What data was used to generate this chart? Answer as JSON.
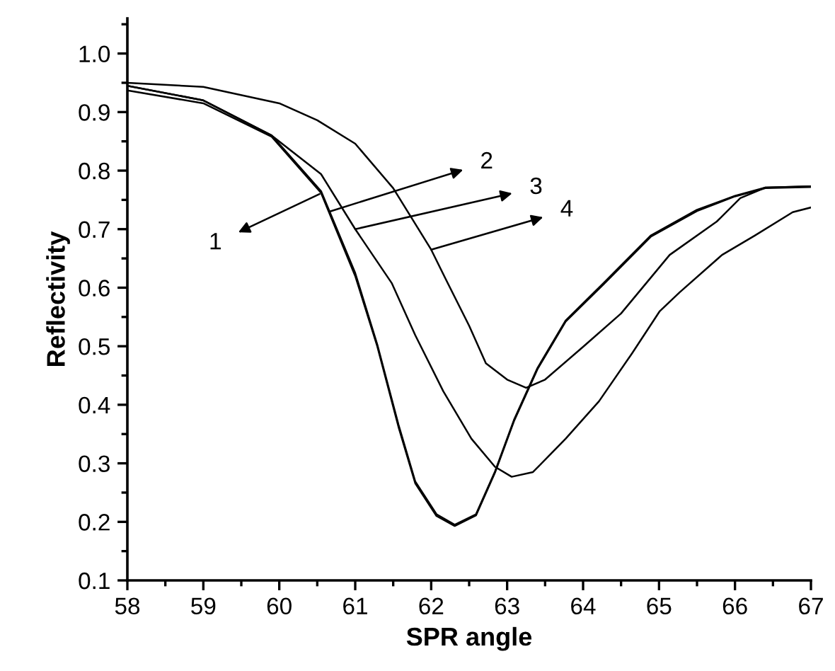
{
  "chart_data": {
    "type": "line",
    "xlabel": "SPR angle",
    "ylabel": "Reflectivity",
    "xlim": [
      58,
      67
    ],
    "ylim": [
      0.1,
      1.06
    ],
    "xticks": [
      58,
      59,
      60,
      61,
      62,
      63,
      64,
      65,
      66,
      67
    ],
    "yticks": [
      {
        "value": 0.1,
        "label": "0.1"
      },
      {
        "value": 0.2,
        "label": "0.2"
      },
      {
        "value": 0.3,
        "label": "0.3"
      },
      {
        "value": 0.4,
        "label": "0.4"
      },
      {
        "value": 0.5,
        "label": "0.5"
      },
      {
        "value": 0.6,
        "label": "0.6"
      },
      {
        "value": 0.7,
        "label": "0.7"
      },
      {
        "value": 0.8,
        "label": "0.8"
      },
      {
        "value": 0.9,
        "label": "0.9"
      },
      {
        "value": 1.0,
        "label": "1.0"
      }
    ],
    "grid": false,
    "legend": false,
    "marker": "none",
    "line_style": "solid",
    "series": [
      {
        "color": "#000000",
        "x": [
          58,
          59,
          59.9,
          60.55,
          61.0,
          61.29,
          61.57,
          61.79,
          62.07,
          62.31,
          62.59,
          62.84,
          63.09,
          63.4,
          63.77,
          64.27,
          64.89,
          65.5,
          66.0,
          66.4,
          67
        ],
        "values": [
          0.937,
          0.915,
          0.858,
          0.762,
          0.62,
          0.5,
          0.362,
          0.266,
          0.21,
          0.193,
          0.211,
          0.284,
          0.372,
          0.461,
          0.542,
          0.606,
          0.687,
          0.731,
          0.756,
          0.77,
          0.772
        ]
      },
      {
        "color": "#000000",
        "x": [
          58,
          59,
          59.9,
          60.55,
          61.0,
          61.29,
          61.57,
          61.79,
          62.07,
          62.31,
          62.59,
          62.84,
          63.09,
          63.4,
          63.77,
          64.27,
          64.89,
          65.5,
          66.0,
          66.4,
          67
        ],
        "values": [
          0.945,
          0.92,
          0.86,
          0.765,
          0.625,
          0.503,
          0.366,
          0.269,
          0.213,
          0.195,
          0.213,
          0.286,
          0.374,
          0.463,
          0.544,
          0.608,
          0.689,
          0.733,
          0.757,
          0.771,
          0.773
        ]
      },
      {
        "color": "#000000",
        "x": [
          58,
          59,
          59.9,
          60.55,
          61.0,
          61.48,
          61.79,
          62.16,
          62.53,
          62.84,
          63.06,
          63.34,
          63.77,
          64.21,
          64.64,
          65.01,
          65.27,
          65.83,
          66.26,
          66.76,
          67
        ],
        "values": [
          0.945,
          0.92,
          0.86,
          0.794,
          0.7,
          0.608,
          0.519,
          0.423,
          0.342,
          0.294,
          0.277,
          0.285,
          0.342,
          0.406,
          0.487,
          0.56,
          0.592,
          0.656,
          0.689,
          0.729,
          0.737
        ]
      },
      {
        "color": "#000000",
        "x": [
          58,
          59,
          60,
          60.5,
          61,
          61.5,
          62,
          62.19,
          62.5,
          62.72,
          63.0,
          63.25,
          63.5,
          64,
          64.5,
          65.14,
          65.76,
          66.07,
          66.4,
          67
        ],
        "values": [
          0.95,
          0.943,
          0.915,
          0.886,
          0.846,
          0.77,
          0.665,
          0.615,
          0.535,
          0.471,
          0.443,
          0.429,
          0.443,
          0.499,
          0.556,
          0.656,
          0.713,
          0.753,
          0.771,
          0.773
        ]
      }
    ],
    "annotations": [
      {
        "text": "1",
        "x": 60.53,
        "y": 0.76
      },
      {
        "text": "2",
        "x": 60.66,
        "y": 0.73
      },
      {
        "text": "3",
        "x": 61.0,
        "y": 0.7
      },
      {
        "text": "4",
        "x": 62,
        "y": 0.665
      }
    ]
  }
}
